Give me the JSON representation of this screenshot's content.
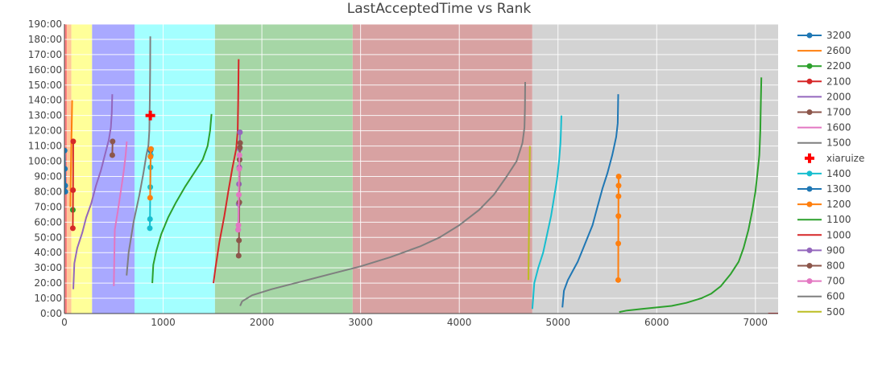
{
  "chart_data": {
    "type": "line",
    "title": "LastAcceptedTime vs Rank",
    "xlabel": "",
    "ylabel": "",
    "xlim": [
      0,
      7230
    ],
    "ylim": [
      0,
      190
    ],
    "x_ticks": [
      {
        "value": 0,
        "label": "0"
      },
      {
        "value": 1000,
        "label": "1000"
      },
      {
        "value": 2000,
        "label": "2000"
      },
      {
        "value": 3000,
        "label": "3000"
      },
      {
        "value": 4000,
        "label": "4000"
      },
      {
        "value": 5000,
        "label": "5000"
      },
      {
        "value": 6000,
        "label": "6000"
      },
      {
        "value": 7000,
        "label": "7000"
      }
    ],
    "y_ticks": [
      {
        "value": 0,
        "label": "0:00"
      },
      {
        "value": 10,
        "label": "10:00"
      },
      {
        "value": 20,
        "label": "20:00"
      },
      {
        "value": 30,
        "label": "30:00"
      },
      {
        "value": 40,
        "label": "40:00"
      },
      {
        "value": 50,
        "label": "50:00"
      },
      {
        "value": 60,
        "label": "60:00"
      },
      {
        "value": 70,
        "label": "70:00"
      },
      {
        "value": 80,
        "label": "80:00"
      },
      {
        "value": 90,
        "label": "90:00"
      },
      {
        "value": 100,
        "label": "100:00"
      },
      {
        "value": 110,
        "label": "110:00"
      },
      {
        "value": 120,
        "label": "120:00"
      },
      {
        "value": 130,
        "label": "130:00"
      },
      {
        "value": 140,
        "label": "140:00"
      },
      {
        "value": 150,
        "label": "150:00"
      },
      {
        "value": 160,
        "label": "160:00"
      },
      {
        "value": 170,
        "label": "170:00"
      },
      {
        "value": 180,
        "label": "180:00"
      },
      {
        "value": 190,
        "label": "190:00"
      }
    ],
    "bands": [
      {
        "x0": 0,
        "x1": 25,
        "color": "#ff8080"
      },
      {
        "x0": 25,
        "x1": 70,
        "color": "#ffc899"
      },
      {
        "x0": 70,
        "x1": 280,
        "color": "#ffff99"
      },
      {
        "x0": 280,
        "x1": 710,
        "color": "#a9a9ff"
      },
      {
        "x0": 710,
        "x1": 1525,
        "color": "#a3ffff"
      },
      {
        "x0": 1525,
        "x1": 2920,
        "color": "#a6d6a6"
      },
      {
        "x0": 2920,
        "x1": 4740,
        "color": "#d8a2a2"
      },
      {
        "x0": 4740,
        "x1": 7230,
        "color": "#d3d3d3"
      }
    ],
    "legend": {
      "placement": "right"
    },
    "series": [
      {
        "name": "3200",
        "color": "#1f77b4",
        "mode": "lines+markers",
        "points": [
          [
            2,
            107
          ],
          [
            5,
            95
          ],
          [
            8,
            84
          ],
          [
            10,
            80
          ]
        ],
        "markers": [
          [
            2,
            107
          ],
          [
            5,
            95
          ],
          [
            8,
            84
          ],
          [
            10,
            80
          ]
        ]
      },
      {
        "name": "2600",
        "color": "#ff7f0e",
        "mode": "lines",
        "points": [
          [
            60,
            70
          ],
          [
            63,
            85
          ],
          [
            67,
            100
          ],
          [
            71,
            115
          ],
          [
            75,
            128
          ],
          [
            78,
            140
          ]
        ]
      },
      {
        "name": "2200",
        "color": "#2ca02c",
        "mode": "lines+markers",
        "points": [
          [
            85,
            68
          ]
        ],
        "markers": [
          [
            85,
            68
          ]
        ]
      },
      {
        "name": "2100",
        "color": "#d62728",
        "mode": "lines+markers",
        "points": [
          [
            85,
            56
          ],
          [
            87,
            81
          ],
          [
            89,
            113
          ]
        ],
        "markers": [
          [
            85,
            56
          ],
          [
            87,
            81
          ],
          [
            89,
            113
          ]
        ]
      },
      {
        "name": "2000",
        "color": "#9467bd",
        "mode": "lines",
        "points": [
          [
            90,
            16
          ],
          [
            100,
            33
          ],
          [
            130,
            43
          ],
          [
            180,
            53
          ],
          [
            220,
            63
          ],
          [
            270,
            72
          ],
          [
            320,
            84
          ],
          [
            370,
            94
          ],
          [
            410,
            104
          ],
          [
            450,
            114
          ],
          [
            470,
            122
          ],
          [
            480,
            132
          ],
          [
            485,
            144
          ]
        ]
      },
      {
        "name": "1700",
        "color": "#8c564b",
        "mode": "lines+markers",
        "points": [
          [
            485,
            104
          ],
          [
            488,
            113
          ]
        ],
        "markers": [
          [
            485,
            104
          ],
          [
            488,
            113
          ]
        ]
      },
      {
        "name": "1600",
        "color": "#e377c2",
        "mode": "lines",
        "points": [
          [
            500,
            18
          ],
          [
            510,
            55
          ],
          [
            540,
            67
          ],
          [
            570,
            80
          ],
          [
            600,
            93
          ],
          [
            620,
            104
          ],
          [
            632,
            113
          ]
        ]
      },
      {
        "name": "1500",
        "color": "#7f7f7f",
        "mode": "lines",
        "points": [
          [
            630,
            25
          ],
          [
            650,
            40
          ],
          [
            700,
            60
          ],
          [
            760,
            78
          ],
          [
            800,
            92
          ],
          [
            830,
            104
          ],
          [
            850,
            110
          ],
          [
            860,
            120
          ],
          [
            865,
            140
          ],
          [
            868,
            160
          ],
          [
            870,
            182
          ]
        ]
      },
      {
        "name": "xiaruize",
        "color": "#ff0000",
        "mode": "markers",
        "symbol": "cross",
        "points": [
          [
            870,
            130
          ]
        ],
        "markers": [
          [
            870,
            130
          ]
        ]
      },
      {
        "name": "1400",
        "color": "#17becf",
        "mode": "lines+markers",
        "points": [
          [
            865,
            56
          ],
          [
            867,
            62
          ],
          [
            870,
            83
          ],
          [
            872,
            96
          ],
          [
            875,
            104
          ],
          [
            878,
            108
          ]
        ],
        "markers": [
          [
            865,
            56
          ],
          [
            867,
            62
          ],
          [
            870,
            83
          ],
          [
            872,
            96
          ],
          [
            875,
            104
          ],
          [
            878,
            108
          ]
        ]
      },
      {
        "name": "1300",
        "color": "#1f77b4",
        "mode": "lines+markers",
        "points": [
          [
            872,
            107
          ]
        ],
        "markers": [
          [
            872,
            107
          ]
        ]
      },
      {
        "name": "1200",
        "color": "#ff7f0e",
        "mode": "lines+markers",
        "points": [
          [
            868,
            76
          ],
          [
            872,
            103
          ],
          [
            876,
            108
          ]
        ],
        "markers": [
          [
            868,
            76
          ],
          [
            872,
            103
          ],
          [
            876,
            108
          ]
        ]
      },
      {
        "name": "1100",
        "color": "#2ca02c",
        "mode": "lines",
        "points": [
          [
            890,
            20
          ],
          [
            900,
            32
          ],
          [
            930,
            41
          ],
          [
            980,
            52
          ],
          [
            1050,
            63
          ],
          [
            1130,
            73
          ],
          [
            1220,
            83
          ],
          [
            1320,
            93
          ],
          [
            1400,
            101
          ],
          [
            1450,
            110
          ],
          [
            1475,
            120
          ],
          [
            1490,
            131
          ]
        ]
      },
      {
        "name": "1000",
        "color": "#d62728",
        "mode": "lines",
        "points": [
          [
            1510,
            20
          ],
          [
            1530,
            30
          ],
          [
            1570,
            47
          ],
          [
            1620,
            64
          ],
          [
            1660,
            80
          ],
          [
            1700,
            95
          ],
          [
            1740,
            108
          ],
          [
            1755,
            120
          ],
          [
            1760,
            140
          ],
          [
            1765,
            167
          ]
        ]
      },
      {
        "name": "900",
        "color": "#9467bd",
        "mode": "lines+markers",
        "points": [
          [
            1760,
            55
          ],
          [
            1765,
            72
          ],
          [
            1768,
            85
          ],
          [
            1772,
            96
          ],
          [
            1775,
            108
          ],
          [
            1778,
            119
          ]
        ],
        "markers": [
          [
            1760,
            55
          ],
          [
            1765,
            72
          ],
          [
            1768,
            85
          ],
          [
            1772,
            96
          ],
          [
            1775,
            108
          ],
          [
            1778,
            119
          ]
        ]
      },
      {
        "name": "800",
        "color": "#8c564b",
        "mode": "lines+markers",
        "points": [
          [
            1765,
            38
          ],
          [
            1768,
            48
          ],
          [
            1772,
            73
          ],
          [
            1775,
            101
          ],
          [
            1778,
            109
          ],
          [
            1780,
            112
          ]
        ],
        "markers": [
          [
            1765,
            38
          ],
          [
            1768,
            48
          ],
          [
            1772,
            73
          ],
          [
            1775,
            101
          ],
          [
            1778,
            109
          ],
          [
            1780,
            112
          ]
        ]
      },
      {
        "name": "700",
        "color": "#e377c2",
        "mode": "lines+markers",
        "points": [
          [
            1760,
            55
          ],
          [
            1763,
            58
          ],
          [
            1767,
            78
          ],
          [
            1770,
            95
          ],
          [
            1773,
            104
          ]
        ],
        "markers": [
          [
            1760,
            55
          ],
          [
            1763,
            58
          ],
          [
            1767,
            78
          ],
          [
            1770,
            95
          ],
          [
            1773,
            104
          ]
        ]
      },
      {
        "name": "600",
        "color": "#7f7f7f",
        "mode": "lines",
        "points": [
          [
            1780,
            5
          ],
          [
            1800,
            8
          ],
          [
            1900,
            12
          ],
          [
            2100,
            16
          ],
          [
            2400,
            21
          ],
          [
            2700,
            26
          ],
          [
            3000,
            31
          ],
          [
            3300,
            37
          ],
          [
            3600,
            44
          ],
          [
            3800,
            50
          ],
          [
            4000,
            58
          ],
          [
            4200,
            68
          ],
          [
            4350,
            78
          ],
          [
            4480,
            90
          ],
          [
            4580,
            100
          ],
          [
            4640,
            112
          ],
          [
            4660,
            122
          ],
          [
            4665,
            135
          ],
          [
            4668,
            152
          ]
        ]
      },
      {
        "name": "500",
        "color": "#bcbd22",
        "mode": "lines",
        "points": [
          [
            4700,
            22
          ],
          [
            4705,
            50
          ],
          [
            4710,
            80
          ],
          [
            4715,
            110
          ]
        ]
      },
      {
        "name": "1400",
        "color": "#17becf",
        "mode": "lines",
        "showlegend": false,
        "points": [
          [
            4740,
            3
          ],
          [
            4760,
            20
          ],
          [
            4800,
            30
          ],
          [
            4850,
            40
          ],
          [
            4890,
            52
          ],
          [
            4930,
            64
          ],
          [
            4960,
            76
          ],
          [
            4990,
            88
          ],
          [
            5010,
            100
          ],
          [
            5025,
            112
          ],
          [
            5030,
            120
          ],
          [
            5035,
            130
          ]
        ]
      },
      {
        "name": "1300",
        "color": "#1f77b4",
        "mode": "lines",
        "showlegend": false,
        "points": [
          [
            5045,
            4
          ],
          [
            5060,
            15
          ],
          [
            5100,
            22
          ],
          [
            5150,
            28
          ],
          [
            5200,
            34
          ],
          [
            5250,
            42
          ],
          [
            5300,
            50
          ],
          [
            5350,
            58
          ],
          [
            5400,
            70
          ],
          [
            5450,
            82
          ],
          [
            5500,
            92
          ],
          [
            5550,
            104
          ],
          [
            5590,
            116
          ],
          [
            5605,
            125
          ],
          [
            5610,
            144
          ]
        ]
      },
      {
        "name": "1200",
        "color": "#ff7f0e",
        "mode": "lines+markers",
        "showlegend": false,
        "points": [
          [
            5610,
            22
          ],
          [
            5611,
            46
          ],
          [
            5612,
            64
          ],
          [
            5613,
            77
          ],
          [
            5614,
            84
          ],
          [
            5615,
            90
          ]
        ],
        "markers": [
          [
            5610,
            22
          ],
          [
            5611,
            46
          ],
          [
            5612,
            64
          ],
          [
            5613,
            77
          ],
          [
            5614,
            84
          ],
          [
            5615,
            90
          ]
        ]
      },
      {
        "name": "1100",
        "color": "#2ca02c",
        "mode": "lines",
        "showlegend": false,
        "points": [
          [
            5620,
            1
          ],
          [
            5700,
            2
          ],
          [
            5850,
            3
          ],
          [
            6000,
            4
          ],
          [
            6150,
            5
          ],
          [
            6300,
            7
          ],
          [
            6450,
            10
          ],
          [
            6550,
            13
          ],
          [
            6650,
            18
          ],
          [
            6750,
            26
          ],
          [
            6830,
            34
          ],
          [
            6880,
            43
          ],
          [
            6930,
            55
          ],
          [
            6970,
            68
          ],
          [
            7000,
            80
          ],
          [
            7020,
            92
          ],
          [
            7040,
            104
          ],
          [
            7050,
            120
          ],
          [
            7055,
            140
          ],
          [
            7060,
            155
          ]
        ]
      },
      {
        "name": "1000",
        "color": "#d62728",
        "mode": "lines",
        "showlegend": false,
        "points": [
          [
            7130,
            0
          ],
          [
            7230,
            0
          ]
        ]
      }
    ]
  }
}
